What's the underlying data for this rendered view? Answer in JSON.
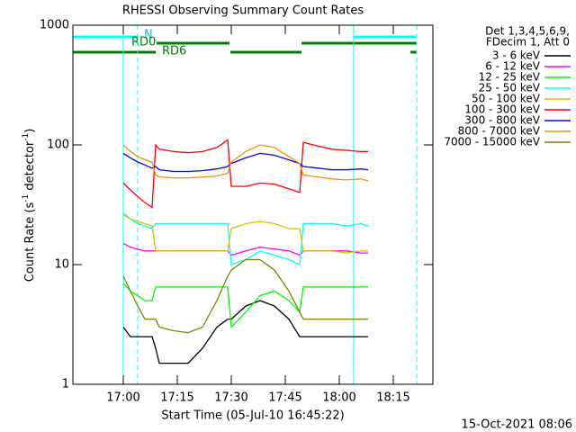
{
  "chart_data": {
    "type": "line",
    "title": "RHESSI Observing Summary Count Rates",
    "xlabel": "Start Time (05-Jul-10 16:45:22)",
    "ylabel_parts": [
      "Count Rate (s",
      "-1",
      " detector",
      "-1",
      ")"
    ],
    "legend_header": [
      "Det 1,3,4,5,6,9,",
      "FDecim 1, Att 0"
    ],
    "footer": "15-Oct-2021 08:06",
    "flags": [
      "N",
      "RD0",
      "RD6"
    ],
    "ylog": true,
    "xlim": [
      1006,
      1106
    ],
    "ylim": [
      1,
      1000
    ],
    "yticks": [
      1,
      10,
      100,
      1000
    ],
    "xticks": [
      {
        "value": 1020,
        "label": "17:00"
      },
      {
        "value": 1035,
        "label": "17:15"
      },
      {
        "value": 1050,
        "label": "17:30"
      },
      {
        "value": 1065,
        "label": "17:45"
      },
      {
        "value": 1080,
        "label": "18:00"
      },
      {
        "value": 1095,
        "label": "18:15"
      }
    ],
    "x": [
      1020,
      1022,
      1024,
      1026,
      1028,
      1029,
      1030,
      1034,
      1038,
      1042,
      1046,
      1049,
      1050,
      1054,
      1058,
      1062,
      1066,
      1069,
      1070,
      1074,
      1078,
      1082,
      1086,
      1088
    ],
    "series": [
      {
        "name": "3 - 6 keV",
        "color": "#000000",
        "values": [
          3,
          2.5,
          2.5,
          2.5,
          2.5,
          2,
          1.5,
          1.5,
          1.5,
          2,
          3,
          3.5,
          3.5,
          4.5,
          5,
          4.5,
          3.5,
          2.5,
          2.5,
          2.5,
          2.5,
          2.5,
          2.5,
          2.5
        ]
      },
      {
        "name": "6 - 12 keV",
        "color": "#ff00ff",
        "values": [
          15,
          14,
          13.5,
          13,
          13,
          13,
          13,
          13,
          13,
          13,
          13,
          13,
          12,
          13,
          14,
          13.5,
          13,
          12,
          13,
          13,
          13,
          13,
          12.5,
          12.5
        ]
      },
      {
        "name": "12 - 25 keV",
        "color": "#00ff00",
        "values": [
          7,
          6,
          5.5,
          5,
          5,
          6.5,
          6.5,
          6.5,
          6.5,
          6.5,
          6.5,
          6.5,
          3,
          4,
          5.5,
          6,
          5,
          4,
          6.5,
          6.5,
          6.5,
          6.5,
          6.5,
          6.5
        ]
      },
      {
        "name": "25 - 50 keV",
        "color": "#00ffff",
        "values": [
          27,
          24,
          22,
          21,
          20,
          22,
          22,
          22,
          22,
          22,
          22,
          22,
          10,
          11,
          13,
          12,
          11,
          10,
          22,
          22,
          22,
          21,
          22,
          21
        ]
      },
      {
        "name": "50 - 100 keV",
        "color": "#d4c400",
        "values": [
          26,
          24,
          23,
          22,
          21,
          13,
          13,
          13,
          13,
          13,
          13,
          13,
          20,
          22,
          23,
          22,
          20,
          20,
          13,
          13,
          13,
          12.5,
          13,
          13
        ]
      },
      {
        "name": "100 - 300 keV",
        "color": "#ff0000",
        "values": [
          48,
          42,
          37,
          33,
          30,
          100,
          92,
          88,
          86,
          88,
          95,
          110,
          45,
          45,
          48,
          47,
          43,
          40,
          105,
          98,
          92,
          90,
          88,
          88
        ]
      },
      {
        "name": "300 - 800 keV",
        "color": "#0000ff",
        "values": [
          85,
          78,
          72,
          68,
          64,
          66,
          62,
          60,
          60,
          61,
          63,
          66,
          70,
          78,
          85,
          82,
          75,
          70,
          66,
          64,
          62,
          62,
          63,
          62
        ]
      },
      {
        "name": "800 - 7000 keV",
        "color": "#ff8c00",
        "values": [
          100,
          88,
          80,
          75,
          72,
          56,
          54,
          53,
          53,
          54,
          55,
          58,
          72,
          88,
          100,
          95,
          80,
          70,
          56,
          54,
          52,
          51,
          52,
          50
        ]
      },
      {
        "name": "7000 - 15000 keV",
        "color": "#808000",
        "values": [
          8,
          6,
          4.5,
          3.5,
          3.5,
          3.5,
          3,
          2.8,
          2.7,
          3,
          5,
          8,
          9,
          11,
          11,
          9,
          6,
          4,
          3.5,
          3.5,
          3.5,
          3.5,
          3.5,
          3.5
        ]
      }
    ]
  }
}
